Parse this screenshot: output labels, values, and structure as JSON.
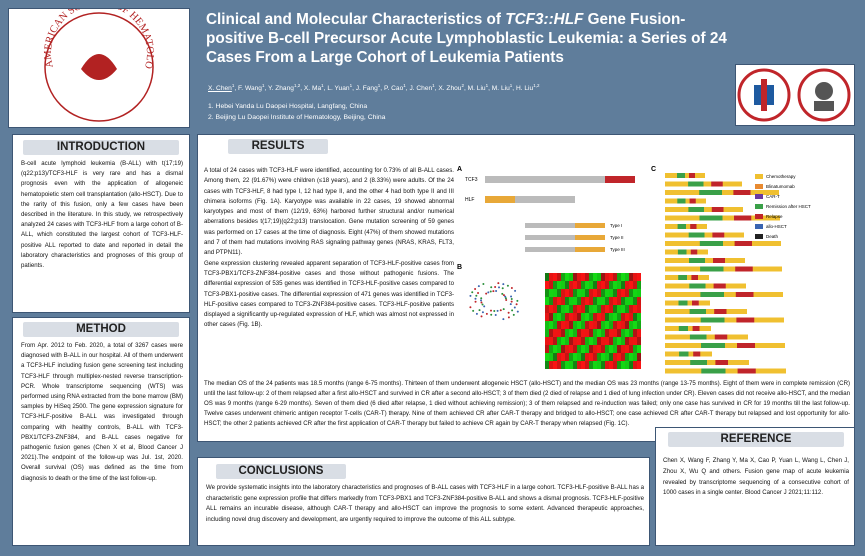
{
  "header": {
    "society": "AMERICAN SOCIETY OF HEMATOLOGY",
    "title_before": "Clinical and Molecular Characteristics of ",
    "title_italic": "TCF3::HLF",
    "title_after": " Gene Fusion-positive B-cell Precursor Acute Lymphoblastic Leukemia: a Series of 24 Cases From a Large Cohort of Leukemia Patients",
    "authors": [
      {
        "name": "X. Chen",
        "sup": "1"
      },
      {
        "name": "F. Wang",
        "sup": "1"
      },
      {
        "name": "Y. Zhang",
        "sup": "1,2"
      },
      {
        "name": "X. Ma",
        "sup": "1"
      },
      {
        "name": "L. Yuan",
        "sup": "1"
      },
      {
        "name": "J. Fang",
        "sup": "1"
      },
      {
        "name": "P. Cao",
        "sup": "1"
      },
      {
        "name": "J. Chen",
        "sup": "1"
      },
      {
        "name": "X. Zhou",
        "sup": "2"
      },
      {
        "name": "M. Liu",
        "sup": "1"
      },
      {
        "name": "M. Liu",
        "sup": "1"
      },
      {
        "name": "H. Liu",
        "sup": "1,2"
      }
    ],
    "affiliations": [
      "1. Hebei Yanda Lu Daopei Hospital, Langfang, China",
      "2. Beijing Lu Daopei Institute of Hematology, Beijing, China"
    ]
  },
  "introduction": {
    "heading": "INTRODUCTION",
    "text": "B-cell acute lymphoid leukemia (B-ALL) with t(17;19)(q22;p13)/TCF3-HLF is very rare and has a dismal prognosis even with the application of allogeneic hematopoietic stem cell transplantation (allo-HSCT). Due to the rarity of this fusion, only a few cases have been described in the literature. In this study, we retrospectively analyzed 24 cases with TCF3-HLF from a large cohort of B-ALL, which constituted the largest cohort of TCF3-HLF-positive ALL reported to date and reported in detail the laboratory characteristics and prognoses of this group of patients."
  },
  "method": {
    "heading": "METHOD",
    "text": "From Apr. 2012 to Feb. 2020, a total of 3267 cases were diagnosed with B-ALL in our hospital. All of them underwent a TCF3-HLF including fusion gene screening test including TCF3-HLF through multiplex-nested reverse transcription-PCR. Whole transcriptome sequencing (WTS) was performed using RNA extracted from the bone marrow (BM) samples by HiSeq 2500. The gene expression signature for TCF3-HLF-positive B-ALL was investigated through comparing with healthy controls, B-ALL with TCF3-PBX1/TCF3-ZNF384, and B-ALL cases negative for pathogenic fusion genes (Chen X et al, Blood Cancer J 2021).The endpoint of the follow-up was Jul. 1st, 2020. Overall survival (OS) was defined as the time from diagnosis to death or the time of the last follow-up."
  },
  "results": {
    "heading": "RESULTS",
    "paragraphs": [
      "A total of 24 cases with TCF3-HLF were identified, accounting for 0.73% of all B-ALL cases. Among them, 22 (91.67%) were children (≤18 years), and 2 (8.33%) were adults. Of the 24 cases with TCF3-HLF, 8 had type I, 12 had type II, and the other 4 had both type II and III chimera isoforms (Fig. 1A). Karyotype was available in 22 cases, 19 showed abnormal karyotypes and most of them (12/19, 63%) harbored further structural and/or numerical aberrations besides t(17;19)(q22;p13) translocation. Gene mutation screening of 59 genes was performed on 17 cases at the time of diagnosis. Eight (47%) of them showed mutations and 7 of them had mutations involving RAS signaling pathway genes (NRAS, KRAS, FLT3, and PTPN11).",
      "Gene expression clustering revealed apparent separation of TCF3-HLF-positive cases from TCF3-PBX1/TCF3-ZNF384-positive cases and those without pathogenic fusions. The differential expression of 535 genes was identified in TCF3-HLF-positive cases compared to TCF3-PBX1-positive cases. The differential expression of 471 genes was identified in TCF3-HLF-positive cases compared to TCF3-ZNF384-positive cases. TCF3-HLF-positive patients displayed a significantly up-regulated expression of HLF, which was almost not expressed in other cases (Fig. 1B).",
      "The median OS of the 24 patients was 18.5 months (range 6-75 months). Thirteen of them underwent allogeneic HSCT (allo-HSCT) and the median OS was 23 months (range 13-75 months). Eight of them were in complete remission (CR) until the last follow-up: 2 of them relapsed after a first allo-HSCT and survived in CR after a second allo-HSCT; 3 of them died (2 died of relapse and 1 died of lung infection under CR). Eleven cases did not receive allo-HSCT, and the median OS was 9 months (range 6-29 months). Seven of them died (6 died after relapse, 1 died without achieving remission); 3 of them relapsed and re-induction was failed; only one case has survived in CR for 19 months till the last follow-up. Twelve cases underwent chimeric antigen receptor T-cells (CAR-T) therapy. Nine of them achieved CR after CAR-T therapy and bridged to allo-HSCT; one case achieved CR after CAR-T therapy but relapsed and lost opportunity for allo-HSCT; the other 2 patients achieved CR after the first application of CAR-T therapy but failed to achieve CR again by CAR-T therapy when relapsed (Fig. 1C)."
    ],
    "figure": {
      "panels": [
        "A",
        "B",
        "C"
      ],
      "genes": [
        "TCF3",
        "HLF"
      ],
      "isoforms": [
        "Type I",
        "Type II",
        "Type III"
      ],
      "legend": [
        "Chemotherapy",
        "Blinatumomab",
        "CAR-T",
        "Remission after HSCT",
        "Relapse",
        "allo-HSCT",
        "Death"
      ]
    }
  },
  "conclusions": {
    "heading": "CONCLUSIONS",
    "text": "We provide systematic insights into the laboratory characteristics and prognoses of B-ALL cases with TCF3-HLF in a large cohort. TCF3-HLF-positive B-ALL has a characteristic gene expression profile that differs markedly from TCF3-PBX1 and TCF3-ZNF384-positive B-ALL and shows a dismal prognosis. TCF3-HLF-positive ALL remains an incurable disease, although CAR-T therapy and allo-HSCT can improve the prognosis to some extent. Advanced therapeutic approaches, including novel drug discovery and development, are urgently required to improve the outcome of this ALL subtype."
  },
  "reference": {
    "heading": "REFERENCE",
    "text": "Chen X, Wang F, Zhang Y, Ma X, Cao P, Yuan L, Wang L, Chen J, Zhou X, Wu Q and others. Fusion gene map of acute leukemia revealed by transcriptome sequencing of a consecutive cohort of 1000 cases in a single center. Blood Cancer J 2021;11:112."
  }
}
